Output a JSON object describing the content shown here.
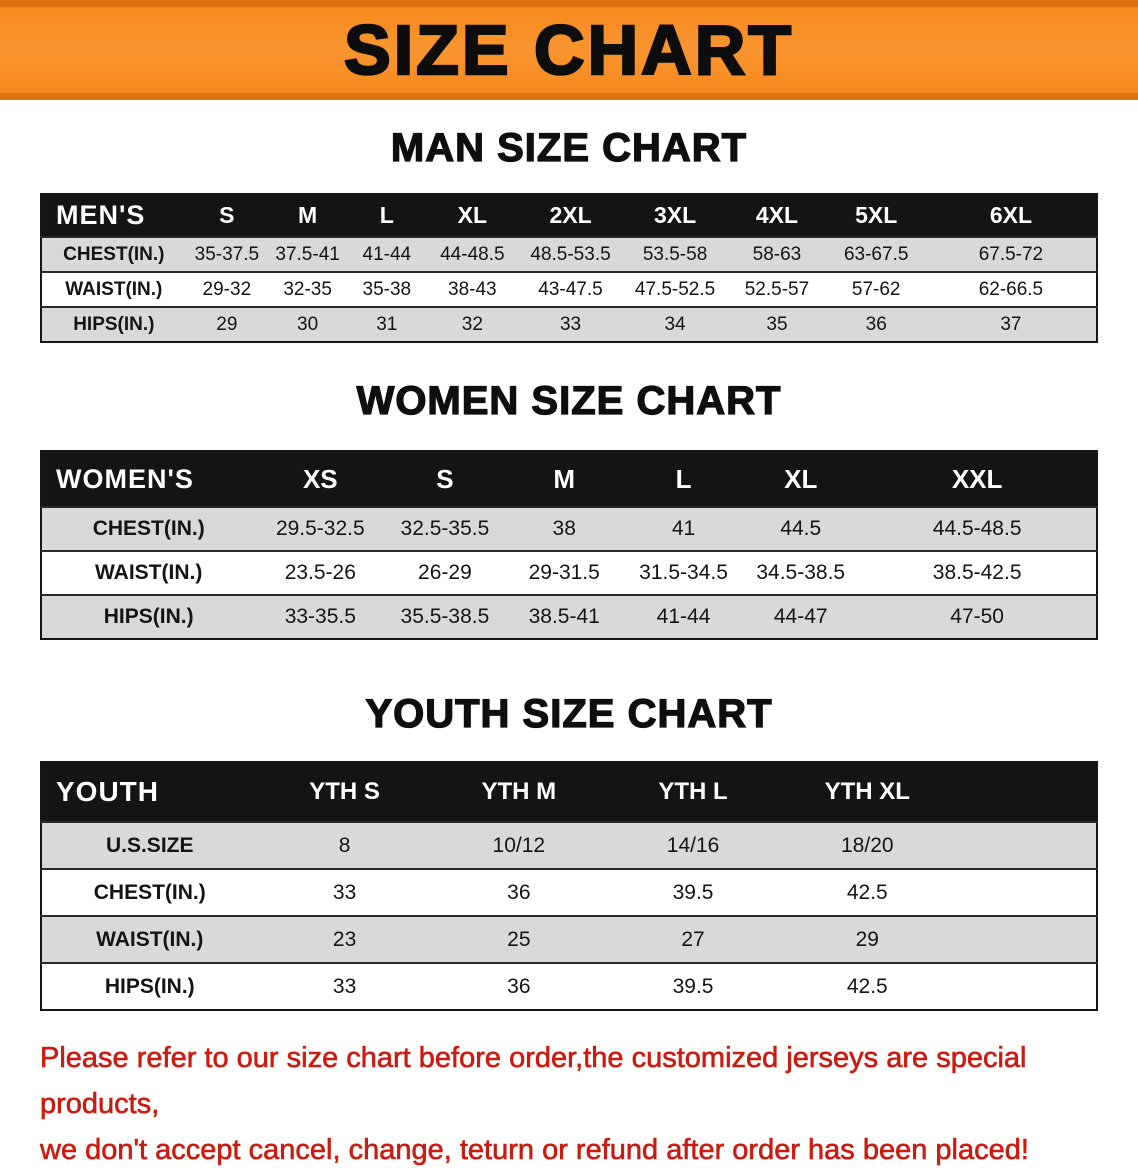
{
  "banner": {
    "title": "SIZE CHART"
  },
  "men": {
    "heading": "MAN SIZE CHART",
    "table": {
      "header": [
        "MEN'S",
        "S",
        "M",
        "L",
        "XL",
        "2XL",
        "3XL",
        "4XL",
        "5XL",
        "6XL"
      ],
      "rows": [
        [
          "CHEST(IN.)",
          "35-37.5",
          "37.5-41",
          "41-44",
          "44-48.5",
          "48.5-53.5",
          "53.5-58",
          "58-63",
          "63-67.5",
          "67.5-72"
        ],
        [
          "WAIST(IN.)",
          "29-32",
          "32-35",
          "35-38",
          "38-43",
          "43-47.5",
          "47.5-52.5",
          "52.5-57",
          "57-62",
          "62-66.5"
        ],
        [
          "HIPS(IN.)",
          "29",
          "30",
          "31",
          "32",
          "33",
          "34",
          "35",
          "36",
          "37"
        ]
      ]
    }
  },
  "women": {
    "heading": "WOMEN SIZE CHART",
    "table": {
      "header": [
        "WOMEN'S",
        "XS",
        "S",
        "M",
        "L",
        "XL",
        "XXL"
      ],
      "rows": [
        [
          "CHEST(IN.)",
          "29.5-32.5",
          "32.5-35.5",
          "38",
          "41",
          "44.5",
          "44.5-48.5"
        ],
        [
          "WAIST(IN.)",
          "23.5-26",
          "26-29",
          "29-31.5",
          "31.5-34.5",
          "34.5-38.5",
          "38.5-42.5"
        ],
        [
          "HIPS(IN.)",
          "33-35.5",
          "35.5-38.5",
          "38.5-41",
          "41-44",
          "44-47",
          "47-50"
        ]
      ]
    }
  },
  "youth": {
    "heading": "YOUTH SIZE CHART",
    "table": {
      "header": [
        "YOUTH",
        "YTH S",
        "YTH M",
        "YTH L",
        "YTH XL"
      ],
      "rows": [
        [
          "U.S.SIZE",
          "8",
          "10/12",
          "14/16",
          "18/20"
        ],
        [
          "CHEST(IN.)",
          "33",
          "36",
          "39.5",
          "42.5"
        ],
        [
          "WAIST(IN.)",
          "23",
          "25",
          "27",
          "29"
        ],
        [
          "HIPS(IN.)",
          "33",
          "36",
          "39.5",
          "42.5"
        ]
      ]
    }
  },
  "footer": {
    "line1": "Please refer to our size chart before order,the customized jerseys are special products,",
    "line2": "we don't accept cancel, change, teturn or refund after order has been placed!"
  },
  "colors": {
    "banner_orange": "#f68a1e",
    "banner_orange_dark": "#dd7410",
    "table_header_black": "#141414",
    "row_gray": "#d9d9d9",
    "footer_red": "#cd1a0f"
  }
}
